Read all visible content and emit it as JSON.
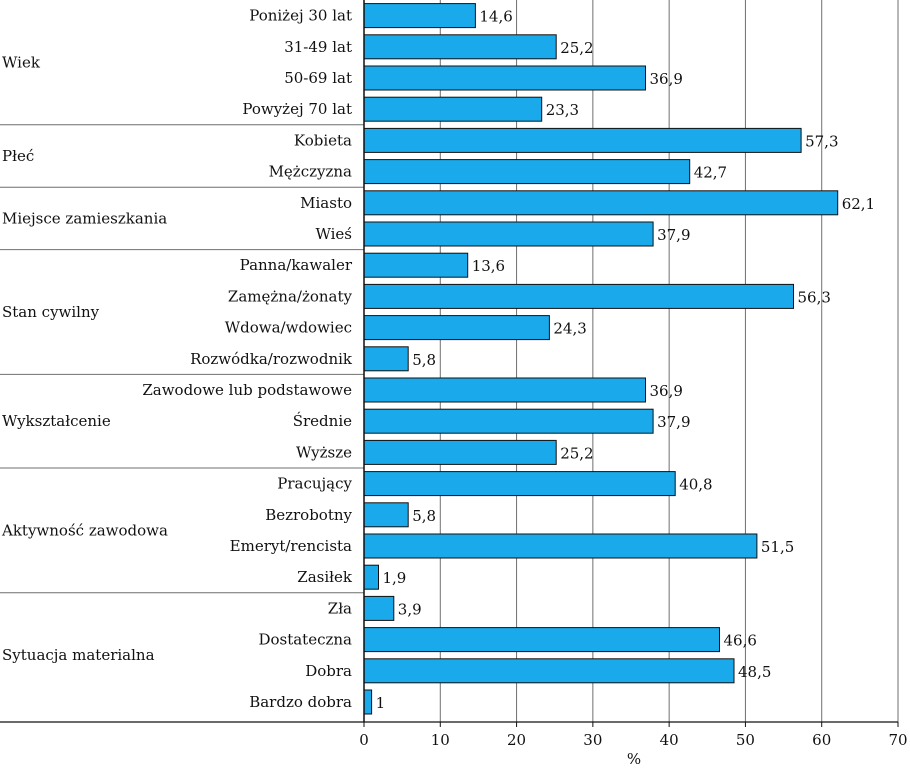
{
  "chart_data": {
    "type": "bar",
    "orientation": "horizontal",
    "xlabel": "%",
    "xlim": [
      0,
      70
    ],
    "xticks": [
      0,
      10,
      20,
      30,
      40,
      50,
      60,
      70
    ],
    "grid": true,
    "bar_color": "#1aa9ea",
    "groups": [
      {
        "name": "Wiek",
        "bars": [
          {
            "label": "Poniżej 30 lat",
            "value": 14.6,
            "value_label": "14,6"
          },
          {
            "label": "31-49 lat",
            "value": 25.2,
            "value_label": "25,2"
          },
          {
            "label": "50-69 lat",
            "value": 36.9,
            "value_label": "36,9"
          },
          {
            "label": "Powyżej 70 lat",
            "value": 23.3,
            "value_label": "23,3"
          }
        ]
      },
      {
        "name": "Płeć",
        "bars": [
          {
            "label": "Kobieta",
            "value": 57.3,
            "value_label": "57,3"
          },
          {
            "label": "Mężczyzna",
            "value": 42.7,
            "value_label": "42,7"
          }
        ]
      },
      {
        "name": "Miejsce zamieszkania",
        "bars": [
          {
            "label": "Miasto",
            "value": 62.1,
            "value_label": "62,1"
          },
          {
            "label": "Wieś",
            "value": 37.9,
            "value_label": "37,9"
          }
        ]
      },
      {
        "name": "Stan cywilny",
        "bars": [
          {
            "label": "Panna/kawaler",
            "value": 13.6,
            "value_label": "13,6"
          },
          {
            "label": "Zamężna/żonaty",
            "value": 56.3,
            "value_label": "56,3"
          },
          {
            "label": "Wdowa/wdowiec",
            "value": 24.3,
            "value_label": "24,3"
          },
          {
            "label": "Rozwódka/rozwodnik",
            "value": 5.8,
            "value_label": "5,8"
          }
        ]
      },
      {
        "name": "Wykształcenie",
        "bars": [
          {
            "label": "Zawodowe lub podstawowe",
            "value": 36.9,
            "value_label": "36,9"
          },
          {
            "label": "Średnie",
            "value": 37.9,
            "value_label": "37,9"
          },
          {
            "label": "Wyższe",
            "value": 25.2,
            "value_label": "25,2"
          }
        ]
      },
      {
        "name": "Aktywność zawodowa",
        "bars": [
          {
            "label": "Pracujący",
            "value": 40.8,
            "value_label": "40,8"
          },
          {
            "label": "Bezrobotny",
            "value": 5.8,
            "value_label": "5,8"
          },
          {
            "label": "Emeryt/rencista",
            "value": 51.5,
            "value_label": "51,5"
          },
          {
            "label": "Zasiłek",
            "value": 1.9,
            "value_label": "1,9"
          }
        ]
      },
      {
        "name": "Sytuacja materialna",
        "bars": [
          {
            "label": "Zła",
            "value": 3.9,
            "value_label": "3,9"
          },
          {
            "label": "Dostateczna",
            "value": 46.6,
            "value_label": "46,6"
          },
          {
            "label": "Dobra",
            "value": 48.5,
            "value_label": "48,5"
          },
          {
            "label": "Bardzo dobra",
            "value": 1,
            "value_label": "1"
          }
        ]
      }
    ]
  }
}
